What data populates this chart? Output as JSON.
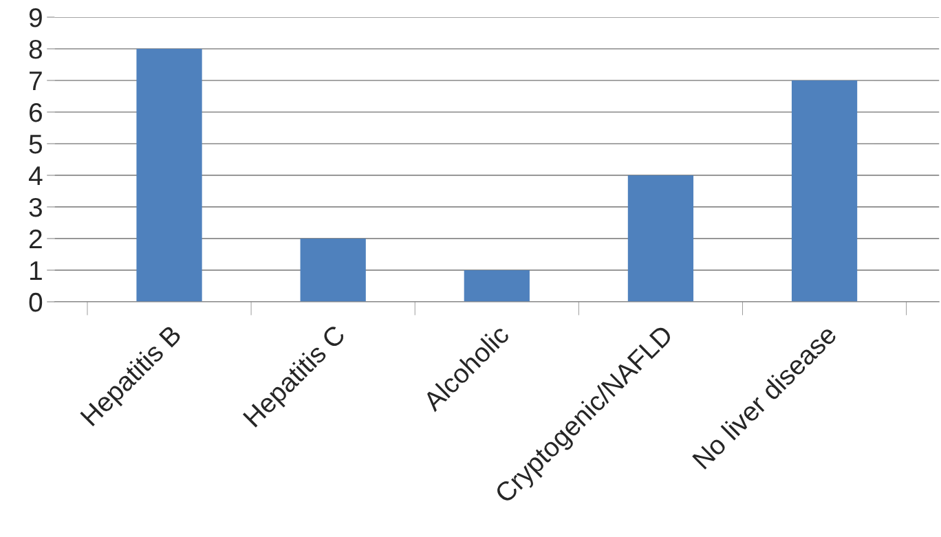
{
  "chart_data": {
    "type": "bar",
    "categories": [
      "Hepatitis B",
      "Hepatitis C",
      "Alcoholic",
      "Cryptogenic/NAFLD",
      "No liver disease"
    ],
    "values": [
      8,
      2,
      1,
      4,
      7
    ],
    "color": "#4f81bd",
    "ylim": [
      0,
      9
    ],
    "yticks": [
      0,
      1,
      2,
      3,
      4,
      5,
      6,
      7,
      8,
      9
    ],
    "grid": "y"
  }
}
